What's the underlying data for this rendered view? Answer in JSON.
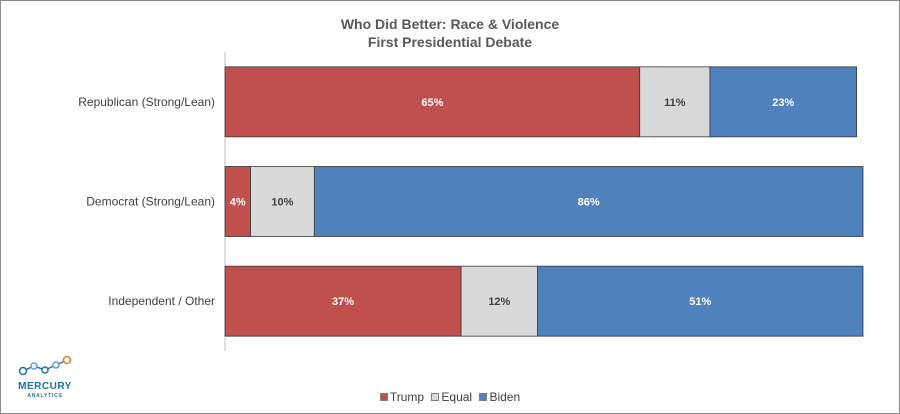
{
  "chart_data": {
    "type": "bar",
    "orientation": "horizontal",
    "stacked": true,
    "title": "Who Did Better: Race & Violence",
    "subtitle": "First Presidential Debate",
    "categories": [
      "Republican (Strong/Lean)",
      "Democrat (Strong/Lean)",
      "Independent / Other"
    ],
    "series": [
      {
        "name": "Trump",
        "color": "#c0504d",
        "values": [
          65,
          4,
          37
        ],
        "labels": [
          "65%",
          "4%",
          "37%"
        ]
      },
      {
        "name": "Equal",
        "color": "#d9d9d9",
        "values": [
          11,
          10,
          12
        ],
        "labels": [
          "11%",
          "10%",
          "12%"
        ]
      },
      {
        "name": "Biden",
        "color": "#4f81bd",
        "values": [
          23,
          86,
          51
        ],
        "labels": [
          "23%",
          "86%",
          "51%"
        ]
      }
    ],
    "xlim": [
      0,
      100
    ],
    "grid": false,
    "legend": "bottom"
  },
  "logo": {
    "text": "MERCURY",
    "subtext": "ANALYTICS"
  }
}
